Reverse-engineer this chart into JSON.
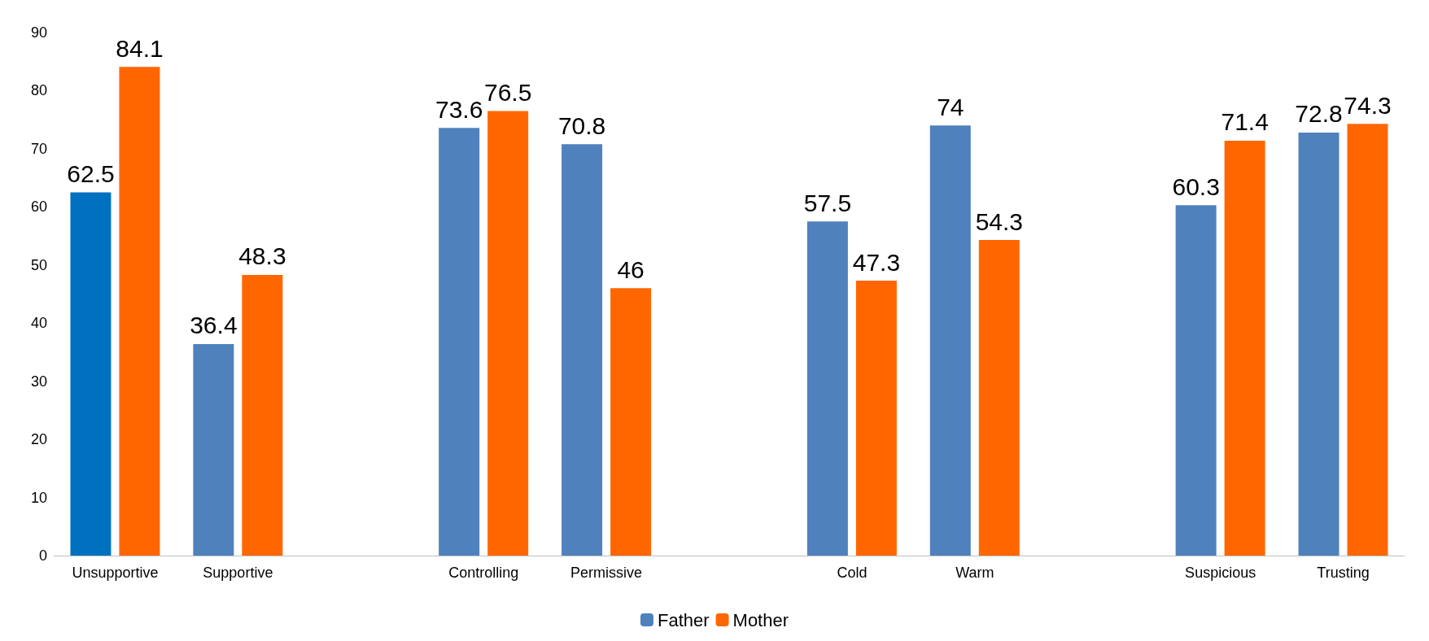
{
  "chart_data": {
    "type": "bar",
    "categories": [
      "Unsupportive",
      "Supportive",
      null,
      "Controlling",
      "Permissive",
      null,
      "Cold",
      "Warm",
      null,
      "Suspicious",
      "Trusting"
    ],
    "series": [
      {
        "name": "Father",
        "color": "#4f81bd",
        "colors": [
          "#0070c0",
          "#4f81bd",
          null,
          "#4f81bd",
          "#4f81bd",
          null,
          "#4f81bd",
          "#4f81bd",
          null,
          "#4f81bd",
          "#4f81bd"
        ],
        "values": [
          62.5,
          36.4,
          null,
          73.6,
          70.8,
          null,
          57.5,
          74,
          null,
          60.3,
          72.8
        ]
      },
      {
        "name": "Mother",
        "color": "#ff6600",
        "values": [
          84.1,
          48.3,
          null,
          76.5,
          46,
          null,
          47.3,
          54.3,
          null,
          71.4,
          74.3
        ]
      }
    ],
    "ylim": [
      0,
      90
    ],
    "yticks": [
      0,
      10,
      20,
      30,
      40,
      50,
      60,
      70,
      80,
      90
    ],
    "grid": false,
    "legend": "bottom",
    "data_labels": true
  }
}
